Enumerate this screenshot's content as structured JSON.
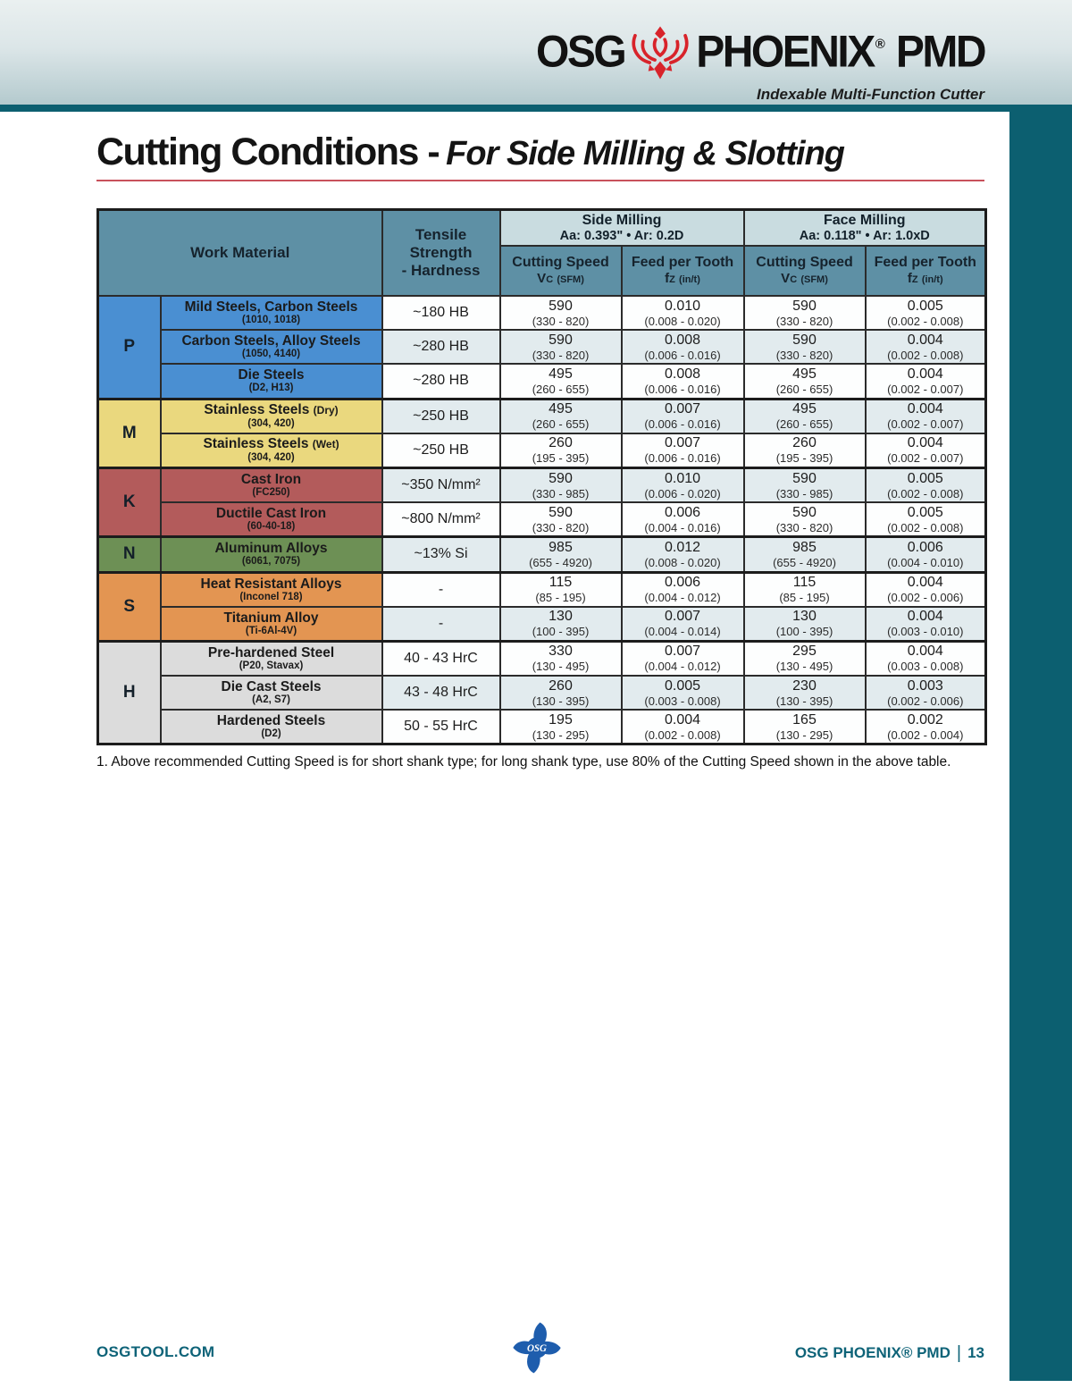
{
  "colors": {
    "teal_accent": "#0c5f70",
    "title_underline": "#c8515b",
    "table_header_bg": "#5e90a5",
    "milling_band_bg": "#c9dce0",
    "row_alt_bg": "#e2ebee",
    "phoenix_red": "#d8232a",
    "osg_logo_blue": "#1e5dad",
    "footer_text": "#0e6378"
  },
  "header": {
    "brand": {
      "osg": "OSG",
      "phoenix": "PHOENIX",
      "reg": "®",
      "pmd": "PMD"
    },
    "tagline": "Indexable Multi-Function Cutter",
    "icons": {
      "phoenix": "phoenix-bird-icon"
    }
  },
  "title": {
    "main": "Cutting Conditions -",
    "sub": "For Side Milling & Slotting"
  },
  "table": {
    "headers": {
      "work_material": "Work Material",
      "tensile_line1": "Tensile Strength",
      "tensile_line2": "- Hardness",
      "side": {
        "title": "Side Milling",
        "params": "Aa: 0.393\"  •  Ar: 0.2D"
      },
      "face": {
        "title": "Face Milling",
        "params": "Aa: 0.118\"  •  Ar: 1.0xD"
      },
      "cutting_speed": "Cutting Speed",
      "vc": "V",
      "vc_sub": "C",
      "vc_unit": "(SFM)",
      "feed_per_tooth": "Feed per Tooth",
      "fz": "f",
      "fz_sub": "Z",
      "fz_unit": "(in/t)"
    },
    "groups": [
      {
        "letter": "P",
        "color": "#4a8fd2",
        "rows": [
          {
            "material": "Mild Steels, Carbon Steels",
            "suffix": "",
            "grades": "(1010, 1018)",
            "tensile": "~180 HB",
            "side_vc": "590",
            "side_vc_range": "(330 - 820)",
            "side_fz": "0.010",
            "side_fz_range": "(0.008 - 0.020)",
            "face_vc": "590",
            "face_vc_range": "(330 - 820)",
            "face_fz": "0.005",
            "face_fz_range": "(0.002 - 0.008)"
          },
          {
            "material": "Carbon Steels, Alloy Steels",
            "suffix": "",
            "grades": "(1050, 4140)",
            "tensile": "~280 HB",
            "side_vc": "590",
            "side_vc_range": "(330 - 820)",
            "side_fz": "0.008",
            "side_fz_range": "(0.006 - 0.016)",
            "face_vc": "590",
            "face_vc_range": "(330 - 820)",
            "face_fz": "0.004",
            "face_fz_range": "(0.002 - 0.008)"
          },
          {
            "material": "Die Steels",
            "suffix": "",
            "grades": "(D2, H13)",
            "tensile": "~280 HB",
            "side_vc": "495",
            "side_vc_range": "(260 - 655)",
            "side_fz": "0.008",
            "side_fz_range": "(0.006 - 0.016)",
            "face_vc": "495",
            "face_vc_range": "(260 - 655)",
            "face_fz": "0.004",
            "face_fz_range": "(0.002 - 0.007)"
          }
        ]
      },
      {
        "letter": "M",
        "color": "#ead87e",
        "rows": [
          {
            "material": "Stainless Steels",
            "suffix": "(Dry)",
            "grades": "(304, 420)",
            "tensile": "~250 HB",
            "side_vc": "495",
            "side_vc_range": "(260 - 655)",
            "side_fz": "0.007",
            "side_fz_range": "(0.006 - 0.016)",
            "face_vc": "495",
            "face_vc_range": "(260 - 655)",
            "face_fz": "0.004",
            "face_fz_range": "(0.002 - 0.007)"
          },
          {
            "material": "Stainless Steels",
            "suffix": "(Wet)",
            "grades": "(304, 420)",
            "tensile": "~250 HB",
            "side_vc": "260",
            "side_vc_range": "(195 - 395)",
            "side_fz": "0.007",
            "side_fz_range": "(0.006 - 0.016)",
            "face_vc": "260",
            "face_vc_range": "(195 - 395)",
            "face_fz": "0.004",
            "face_fz_range": "(0.002 - 0.007)"
          }
        ]
      },
      {
        "letter": "K",
        "color": "#b35b5b",
        "rows": [
          {
            "material": "Cast Iron",
            "suffix": "",
            "grades": "(FC250)",
            "tensile": "~350 N/mm²",
            "side_vc": "590",
            "side_vc_range": "(330 - 985)",
            "side_fz": "0.010",
            "side_fz_range": "(0.006 - 0.020)",
            "face_vc": "590",
            "face_vc_range": "(330 - 985)",
            "face_fz": "0.005",
            "face_fz_range": "(0.002 - 0.008)"
          },
          {
            "material": "Ductile Cast Iron",
            "suffix": "",
            "grades": "(60-40-18)",
            "tensile": "~800 N/mm²",
            "side_vc": "590",
            "side_vc_range": "(330 - 820)",
            "side_fz": "0.006",
            "side_fz_range": "(0.004 - 0.016)",
            "face_vc": "590",
            "face_vc_range": "(330 - 820)",
            "face_fz": "0.005",
            "face_fz_range": "(0.002 - 0.008)"
          }
        ]
      },
      {
        "letter": "N",
        "color": "#6d9055",
        "rows": [
          {
            "material": "Aluminum Alloys",
            "suffix": "",
            "grades": "(6061, 7075)",
            "tensile": "~13% Si",
            "side_vc": "985",
            "side_vc_range": "(655 - 4920)",
            "side_fz": "0.012",
            "side_fz_range": "(0.008 - 0.020)",
            "face_vc": "985",
            "face_vc_range": "(655 - 4920)",
            "face_fz": "0.006",
            "face_fz_range": "(0.004 - 0.010)"
          }
        ]
      },
      {
        "letter": "S",
        "color": "#e39552",
        "rows": [
          {
            "material": "Heat Resistant Alloys",
            "suffix": "",
            "grades": "(Inconel 718)",
            "tensile": "-",
            "side_vc": "115",
            "side_vc_range": "(85 - 195)",
            "side_fz": "0.006",
            "side_fz_range": "(0.004 - 0.012)",
            "face_vc": "115",
            "face_vc_range": "(85 - 195)",
            "face_fz": "0.004",
            "face_fz_range": "(0.002 - 0.006)"
          },
          {
            "material": "Titanium Alloy",
            "suffix": "",
            "grades": "(Ti-6Al-4V)",
            "tensile": "-",
            "side_vc": "130",
            "side_vc_range": "(100 - 395)",
            "side_fz": "0.007",
            "side_fz_range": "(0.004 - 0.014)",
            "face_vc": "130",
            "face_vc_range": "(100 - 395)",
            "face_fz": "0.004",
            "face_fz_range": "(0.003 - 0.010)"
          }
        ]
      },
      {
        "letter": "H",
        "color": "#dcdcdc",
        "rows": [
          {
            "material": "Pre-hardened Steel",
            "suffix": "",
            "grades": "(P20, Stavax)",
            "tensile": "40 - 43 HrC",
            "side_vc": "330",
            "side_vc_range": "(130 - 495)",
            "side_fz": "0.007",
            "side_fz_range": "(0.004 - 0.012)",
            "face_vc": "295",
            "face_vc_range": "(130 - 495)",
            "face_fz": "0.004",
            "face_fz_range": "(0.003 - 0.008)"
          },
          {
            "material": "Die Cast Steels",
            "suffix": "",
            "grades": "(A2, S7)",
            "tensile": "43 - 48 HrC",
            "side_vc": "260",
            "side_vc_range": "(130 - 395)",
            "side_fz": "0.005",
            "side_fz_range": "(0.003 - 0.008)",
            "face_vc": "230",
            "face_vc_range": "(130 - 395)",
            "face_fz": "0.003",
            "face_fz_range": "(0.002 - 0.006)"
          },
          {
            "material": "Hardened Steels",
            "suffix": "",
            "grades": "(D2)",
            "tensile": "50 - 55 HrC",
            "side_vc": "195",
            "side_vc_range": "(130 - 295)",
            "side_fz": "0.004",
            "side_fz_range": "(0.002 - 0.008)",
            "face_vc": "165",
            "face_vc_range": "(130 - 295)",
            "face_fz": "0.002",
            "face_fz_range": "(0.002 - 0.004)"
          }
        ]
      }
    ]
  },
  "footnote": "1. Above recommended Cutting Speed is for short shank type; for long shank type, use 80% of the Cutting Speed shown in the above table.",
  "footer": {
    "left": "OSGTOOL.COM",
    "right_brand": "OSG PHOENIX® PMD",
    "divider": "|",
    "page": "13",
    "icons": {
      "center": "osg-shuriken-logo"
    }
  }
}
